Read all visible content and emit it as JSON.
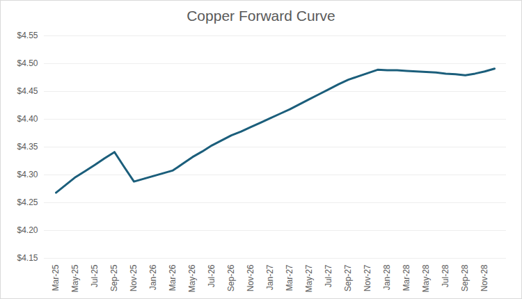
{
  "chart_data": {
    "type": "line",
    "title": "Copper Forward Curve",
    "categories": [
      "Mar-25",
      null,
      "May-25",
      null,
      "Jul-25",
      null,
      "Sep-25",
      null,
      "Nov-25",
      null,
      "Jan-26",
      null,
      "Mar-26",
      null,
      "May-26",
      null,
      "Jul-26",
      null,
      "Sep-26",
      null,
      "Nov-26",
      null,
      "Jan-27",
      null,
      "Mar-27",
      null,
      "May-27",
      null,
      "Jul-27",
      null,
      "Sep-27",
      null,
      "Nov-27",
      null,
      "Jan-28",
      null,
      "Mar-28",
      null,
      "May-28",
      null,
      "Jul-28",
      null,
      "Sep-28",
      null,
      "Nov-28",
      null
    ],
    "values": [
      4.268,
      4.282,
      4.296,
      4.307,
      4.318,
      4.33,
      4.341,
      4.314,
      4.288,
      4.293,
      4.298,
      4.303,
      4.308,
      4.32,
      4.332,
      4.342,
      4.353,
      4.362,
      4.371,
      4.378,
      4.386,
      4.394,
      4.402,
      4.41,
      4.418,
      4.427,
      4.436,
      4.445,
      4.454,
      4.463,
      4.471,
      4.477,
      4.483,
      4.489,
      4.488,
      4.488,
      4.487,
      4.486,
      4.485,
      4.484,
      4.482,
      4.481,
      4.479,
      4.482,
      4.486,
      4.491
    ],
    "color": "#1b5e7b",
    "ylim": [
      4.15,
      4.55
    ],
    "yticks": [
      {
        "value": 4.15,
        "label": "$4.15"
      },
      {
        "value": 4.2,
        "label": "$4.20"
      },
      {
        "value": 4.25,
        "label": "$4.25"
      },
      {
        "value": 4.3,
        "label": "$4.30"
      },
      {
        "value": 4.35,
        "label": "$4.35"
      },
      {
        "value": 4.4,
        "label": "$4.40"
      },
      {
        "value": 4.45,
        "label": "$4.45"
      },
      {
        "value": 4.5,
        "label": "$4.50"
      },
      {
        "value": 4.55,
        "label": "$4.55"
      }
    ],
    "grid": true
  }
}
